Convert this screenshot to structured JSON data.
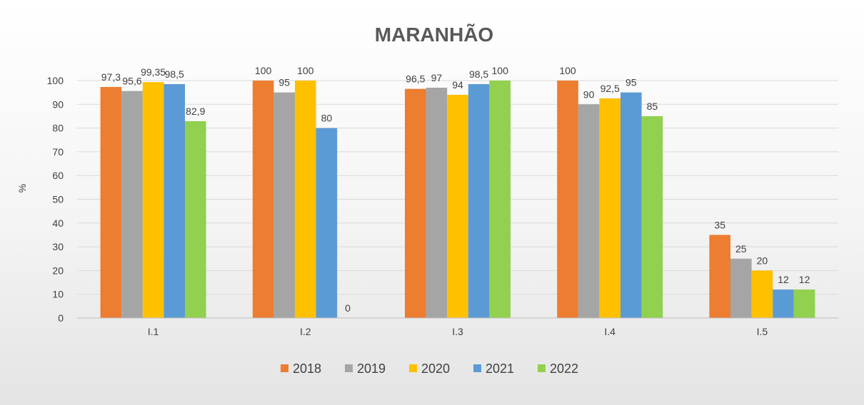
{
  "chart_data": {
    "type": "bar",
    "title": "MARANHÃO",
    "ylabel": "%",
    "xlabel": "",
    "categories": [
      "I.1",
      "I.2",
      "I.3",
      "I.4",
      "I.5"
    ],
    "ylim": [
      0,
      100
    ],
    "yticks": [
      0,
      10,
      20,
      30,
      40,
      50,
      60,
      70,
      80,
      90,
      100
    ],
    "grid": true,
    "legend_position": "bottom",
    "series": [
      {
        "name": "2018",
        "color": "#ED7D31",
        "values": [
          97.3,
          100,
          96.5,
          100,
          35
        ],
        "labels": [
          "97,3",
          "100",
          "96,5",
          "100",
          "35"
        ]
      },
      {
        "name": "2019",
        "color": "#A5A5A5",
        "values": [
          95.6,
          95,
          97,
          90,
          25
        ],
        "labels": [
          "95,6",
          "95",
          "97",
          "90",
          "25"
        ]
      },
      {
        "name": "2020",
        "color": "#FFC000",
        "values": [
          99.35,
          100,
          94,
          92.5,
          20
        ],
        "labels": [
          "99,35",
          "100",
          "94",
          "92,5",
          "20"
        ]
      },
      {
        "name": "2021",
        "color": "#5B9BD5",
        "values": [
          98.5,
          80,
          98.5,
          95,
          12
        ],
        "labels": [
          "98,5",
          "80",
          "98,5",
          "95",
          "12"
        ]
      },
      {
        "name": "2022",
        "color": "#92D050",
        "values": [
          82.9,
          0,
          100,
          85,
          12
        ],
        "labels": [
          "82,9",
          "0",
          "100",
          "85",
          "12"
        ]
      }
    ]
  }
}
